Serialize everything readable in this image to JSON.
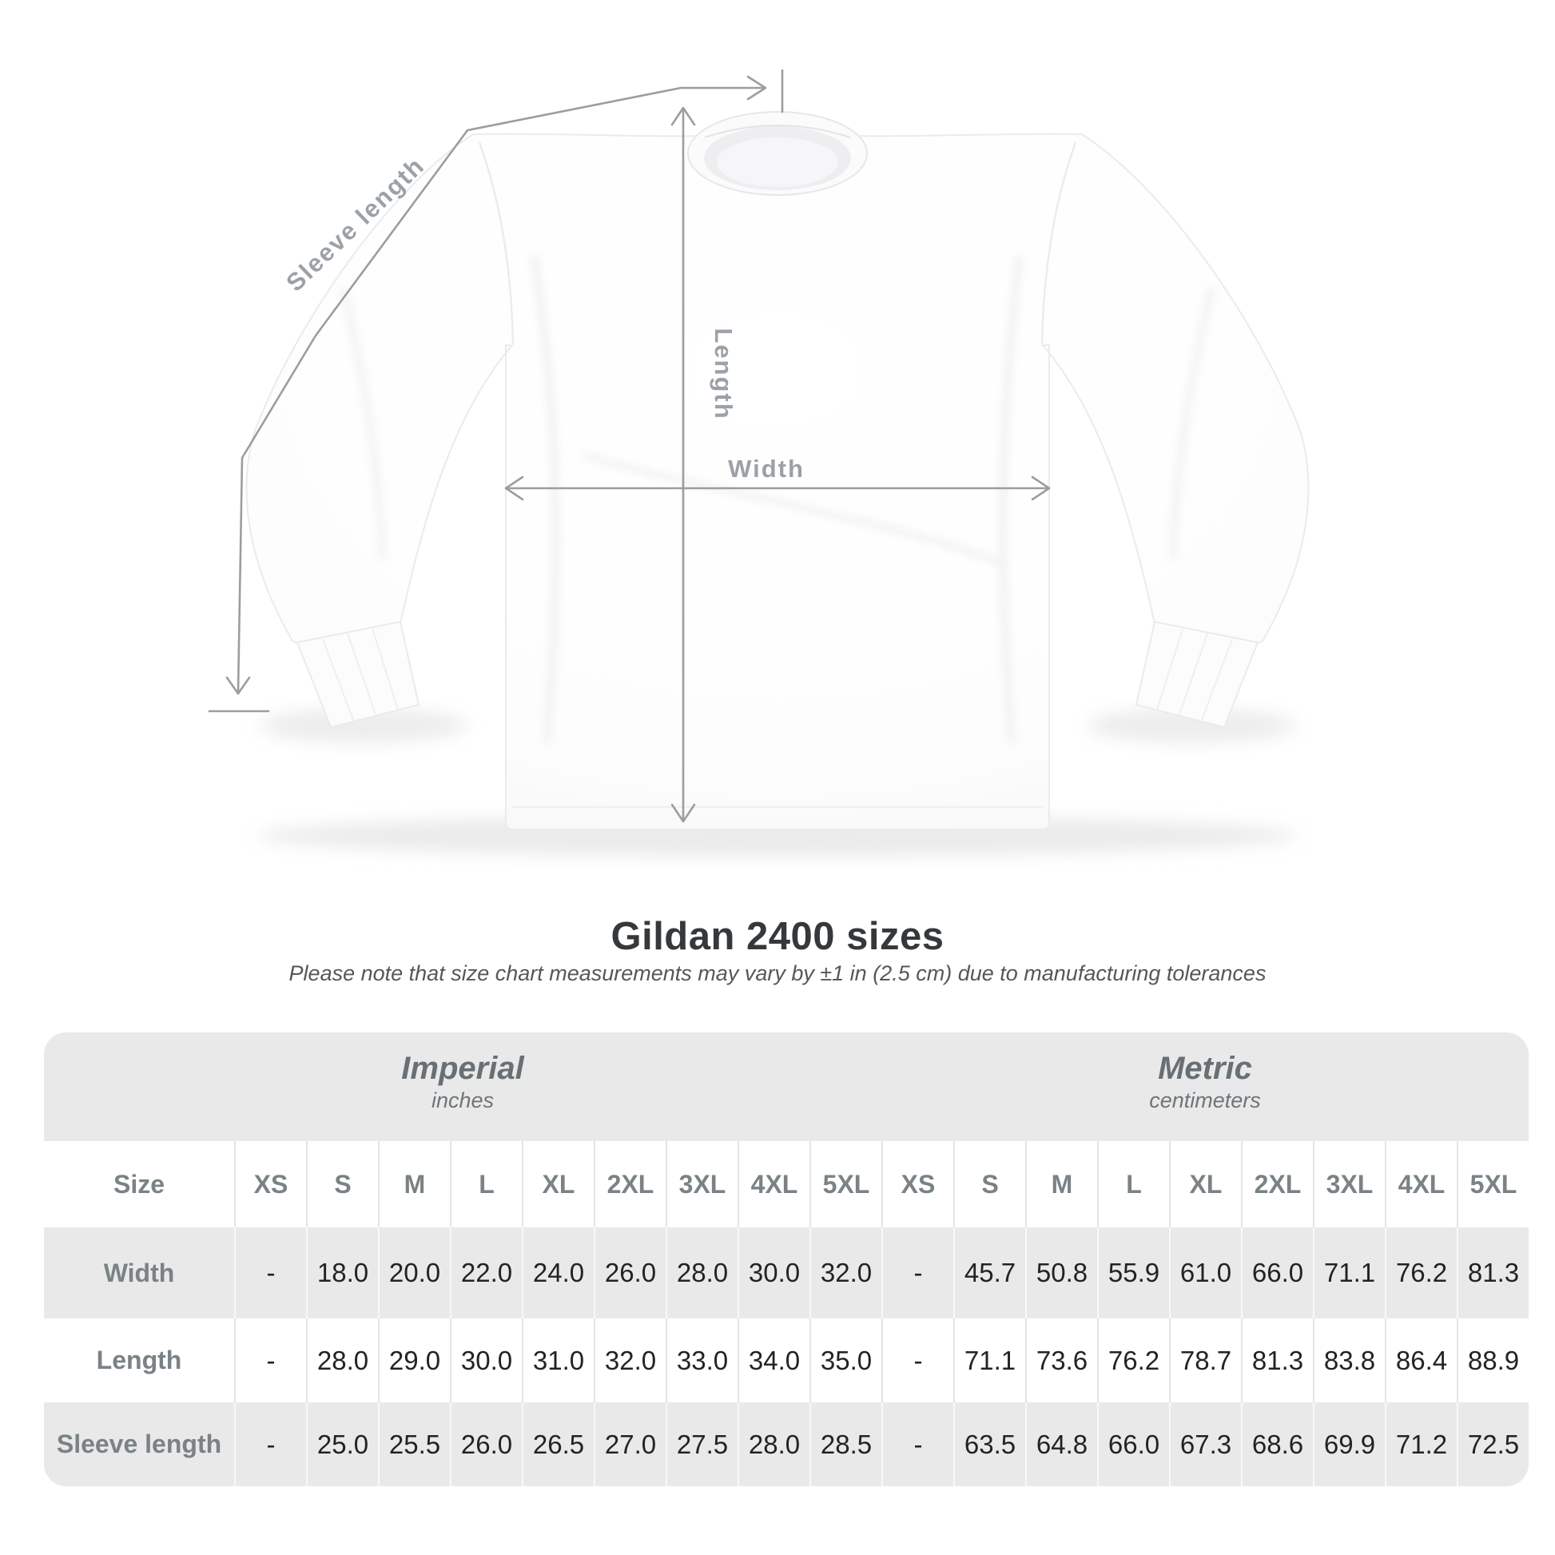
{
  "diagram": {
    "sleeve_length_label": "Sleeve length",
    "length_label": "Length",
    "width_label": "Width"
  },
  "title": "Gildan 2400 sizes",
  "subtitle": "Please note that size chart measurements may vary by ±1 in (2.5 cm) due to manufacturing tolerances",
  "chart_data": {
    "type": "table",
    "title": "Gildan 2400 sizes",
    "subtitle": "Please note that size chart measurements may vary by ±1 in (2.5 cm) due to manufacturing tolerances",
    "corner_header": "Size",
    "unit_groups": [
      {
        "label": "Imperial",
        "sublabel": "inches"
      },
      {
        "label": "Metric",
        "sublabel": "centimeters"
      }
    ],
    "size_columns": [
      "XS",
      "S",
      "M",
      "L",
      "XL",
      "2XL",
      "3XL",
      "4XL",
      "5XL"
    ],
    "rows": [
      {
        "label": "Width",
        "imperial": [
          "-",
          "18.0",
          "20.0",
          "22.0",
          "24.0",
          "26.0",
          "28.0",
          "30.0",
          "32.0"
        ],
        "metric": [
          "-",
          "45.7",
          "50.8",
          "55.9",
          "61.0",
          "66.0",
          "71.1",
          "76.2",
          "81.3"
        ]
      },
      {
        "label": "Length",
        "imperial": [
          "-",
          "28.0",
          "29.0",
          "30.0",
          "31.0",
          "32.0",
          "33.0",
          "34.0",
          "35.0"
        ],
        "metric": [
          "-",
          "71.1",
          "73.6",
          "76.2",
          "78.7",
          "81.3",
          "83.8",
          "86.4",
          "88.9"
        ]
      },
      {
        "label": "Sleeve length",
        "imperial": [
          "-",
          "25.0",
          "25.5",
          "26.0",
          "26.5",
          "27.0",
          "27.5",
          "28.0",
          "28.5"
        ],
        "metric": [
          "-",
          "63.5",
          "64.8",
          "66.0",
          "67.3",
          "68.6",
          "69.9",
          "71.2",
          "72.5"
        ]
      }
    ],
    "layout": {
      "grid": "column-separators",
      "legend_position": "none",
      "row_striping": [
        "gray",
        "white",
        "gray"
      ]
    }
  },
  "colors": {
    "background": "#ffffff",
    "table_band": "#e9e9ea",
    "separator_on_white": "#e4e4e6",
    "separator_on_gray": "#f8f8f9",
    "measure_line": "#9d9da0",
    "diagram_label": "#9ba1a6",
    "muted_header_text": "#7a8285",
    "value_text": "#212325",
    "title_text": "#36393c",
    "subtitle_text": "#53585b"
  }
}
